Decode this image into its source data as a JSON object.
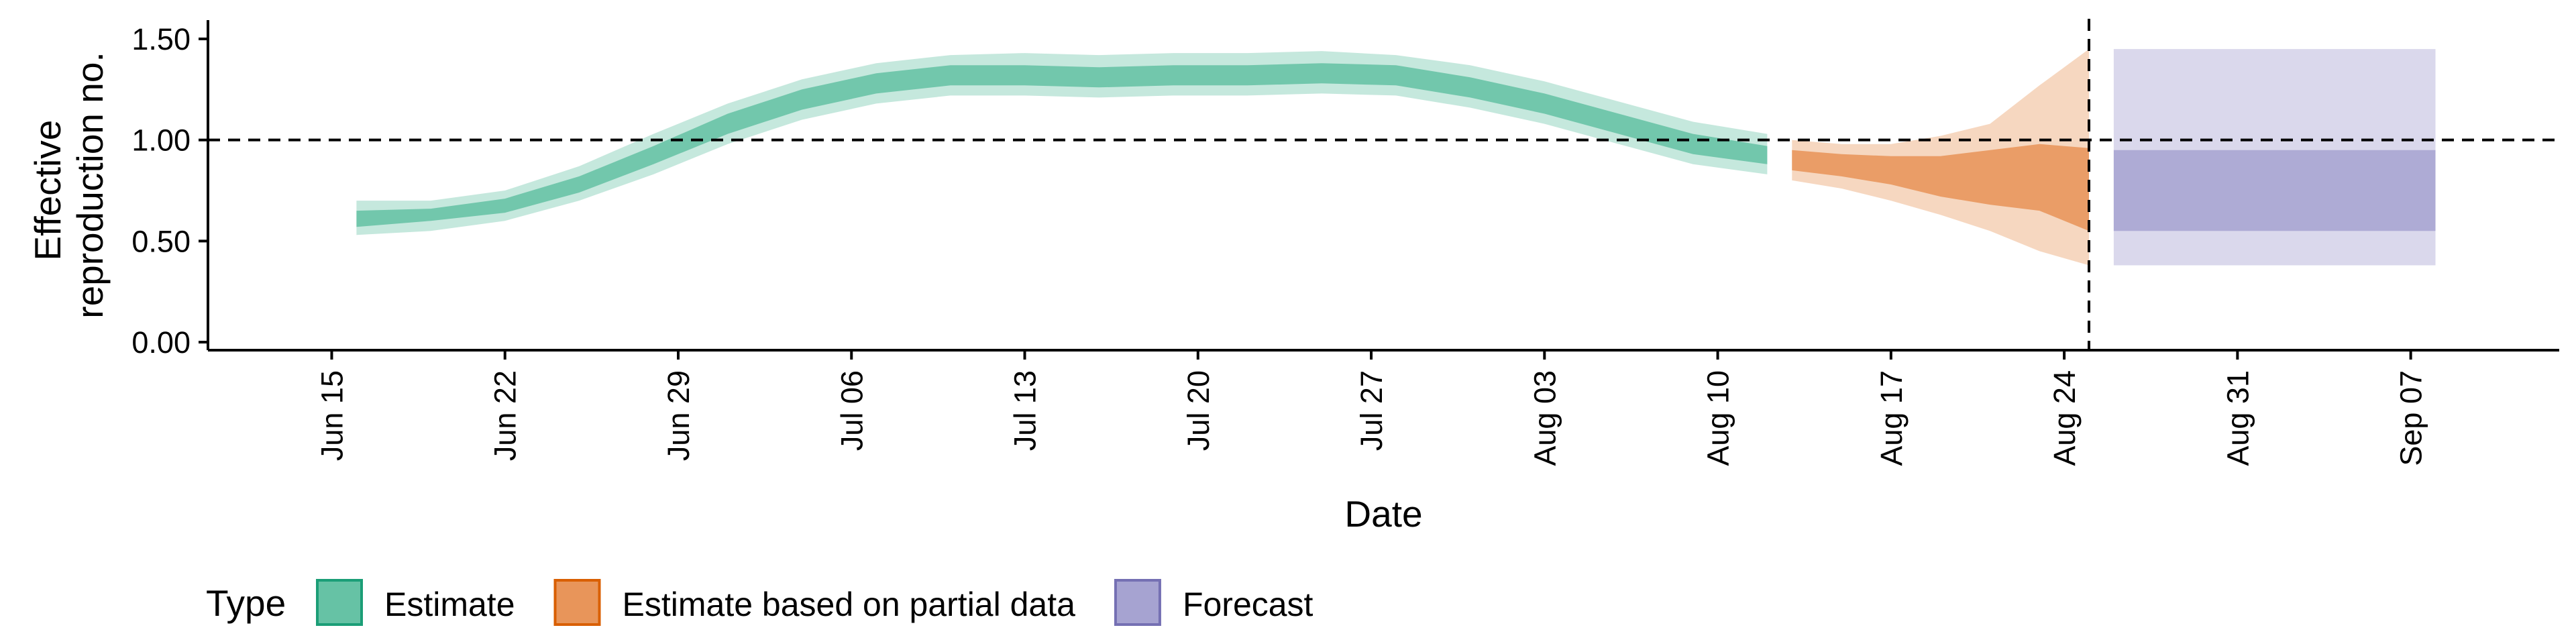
{
  "chart_data": {
    "type": "area",
    "xlabel": "Date",
    "ylabel_lines": [
      "Effective",
      "reproduction no."
    ],
    "ylim": [
      0,
      1.5
    ],
    "y_ticks": [
      0.0,
      0.5,
      1.0,
      1.5
    ],
    "y_tick_labels": [
      "0.00",
      "0.50",
      "1.00",
      "1.50"
    ],
    "x_range": [
      "2020-06-10",
      "2020-09-13"
    ],
    "x_ticks": [
      "2020-06-15",
      "2020-06-22",
      "2020-06-29",
      "2020-07-06",
      "2020-07-13",
      "2020-07-20",
      "2020-07-27",
      "2020-08-03",
      "2020-08-10",
      "2020-08-17",
      "2020-08-24",
      "2020-08-31",
      "2020-09-07"
    ],
    "x_tick_labels": [
      "Jun 15",
      "Jun 22",
      "Jun 29",
      "Jul 06",
      "Jul 13",
      "Jul 20",
      "Jul 27",
      "Aug 03",
      "Aug 10",
      "Aug 17",
      "Aug 24",
      "Aug 31",
      "Sep 07"
    ],
    "reference_lines": {
      "horizontal_y": 1.0,
      "vertical_date": "2020-08-25",
      "style": "dashed"
    },
    "grid": false,
    "legend": {
      "title": "Type",
      "position": "bottom-left",
      "entries": [
        {
          "label": "Estimate",
          "fill": "#66c2a5",
          "border": "#1b9e77"
        },
        {
          "label": "Estimate based on partial data",
          "fill": "#e8955a",
          "border": "#d95f02"
        },
        {
          "label": "Forecast",
          "fill": "#a6a3d1",
          "border": "#7570b3"
        }
      ]
    },
    "series": [
      {
        "name": "Estimate",
        "color": "#66c2a5",
        "points": [
          {
            "date": "2020-06-16",
            "outer": [
              0.53,
              0.7
            ],
            "inner": [
              0.57,
              0.65
            ]
          },
          {
            "date": "2020-06-19",
            "outer": [
              0.55,
              0.7
            ],
            "inner": [
              0.6,
              0.66
            ]
          },
          {
            "date": "2020-06-22",
            "outer": [
              0.6,
              0.75
            ],
            "inner": [
              0.64,
              0.71
            ]
          },
          {
            "date": "2020-06-25",
            "outer": [
              0.7,
              0.87
            ],
            "inner": [
              0.74,
              0.82
            ]
          },
          {
            "date": "2020-06-28",
            "outer": [
              0.83,
              1.03
            ],
            "inner": [
              0.88,
              0.97
            ]
          },
          {
            "date": "2020-07-01",
            "outer": [
              0.98,
              1.18
            ],
            "inner": [
              1.03,
              1.13
            ]
          },
          {
            "date": "2020-07-04",
            "outer": [
              1.1,
              1.3
            ],
            "inner": [
              1.15,
              1.25
            ]
          },
          {
            "date": "2020-07-07",
            "outer": [
              1.18,
              1.38
            ],
            "inner": [
              1.23,
              1.33
            ]
          },
          {
            "date": "2020-07-10",
            "outer": [
              1.22,
              1.42
            ],
            "inner": [
              1.27,
              1.37
            ]
          },
          {
            "date": "2020-07-13",
            "outer": [
              1.22,
              1.43
            ],
            "inner": [
              1.27,
              1.37
            ]
          },
          {
            "date": "2020-07-16",
            "outer": [
              1.21,
              1.42
            ],
            "inner": [
              1.26,
              1.36
            ]
          },
          {
            "date": "2020-07-19",
            "outer": [
              1.22,
              1.43
            ],
            "inner": [
              1.27,
              1.37
            ]
          },
          {
            "date": "2020-07-22",
            "outer": [
              1.22,
              1.43
            ],
            "inner": [
              1.27,
              1.37
            ]
          },
          {
            "date": "2020-07-25",
            "outer": [
              1.23,
              1.44
            ],
            "inner": [
              1.28,
              1.38
            ]
          },
          {
            "date": "2020-07-28",
            "outer": [
              1.22,
              1.42
            ],
            "inner": [
              1.27,
              1.37
            ]
          },
          {
            "date": "2020-07-31",
            "outer": [
              1.16,
              1.37
            ],
            "inner": [
              1.21,
              1.31
            ]
          },
          {
            "date": "2020-08-03",
            "outer": [
              1.08,
              1.29
            ],
            "inner": [
              1.13,
              1.23
            ]
          },
          {
            "date": "2020-08-06",
            "outer": [
              0.98,
              1.19
            ],
            "inner": [
              1.03,
              1.13
            ]
          },
          {
            "date": "2020-08-09",
            "outer": [
              0.88,
              1.09
            ],
            "inner": [
              0.93,
              1.03
            ]
          },
          {
            "date": "2020-08-12",
            "outer": [
              0.83,
              1.03
            ],
            "inner": [
              0.88,
              0.97
            ]
          }
        ]
      },
      {
        "name": "Estimate based on partial data",
        "color": "#e8955a",
        "points": [
          {
            "date": "2020-08-13",
            "outer": [
              0.8,
              1.0
            ],
            "inner": [
              0.85,
              0.95
            ]
          },
          {
            "date": "2020-08-15",
            "outer": [
              0.76,
              0.98
            ],
            "inner": [
              0.82,
              0.93
            ]
          },
          {
            "date": "2020-08-17",
            "outer": [
              0.7,
              0.98
            ],
            "inner": [
              0.78,
              0.92
            ]
          },
          {
            "date": "2020-08-19",
            "outer": [
              0.63,
              1.02
            ],
            "inner": [
              0.72,
              0.92
            ]
          },
          {
            "date": "2020-08-21",
            "outer": [
              0.55,
              1.08
            ],
            "inner": [
              0.68,
              0.95
            ]
          },
          {
            "date": "2020-08-23",
            "outer": [
              0.45,
              1.27
            ],
            "inner": [
              0.65,
              0.98
            ]
          },
          {
            "date": "2020-08-25",
            "outer": [
              0.38,
              1.45
            ],
            "inner": [
              0.55,
              0.96
            ]
          }
        ]
      },
      {
        "name": "Forecast",
        "color": "#a6a3d1",
        "points": [
          {
            "date": "2020-08-26",
            "outer": [
              0.38,
              1.45
            ],
            "inner": [
              0.55,
              0.95
            ]
          },
          {
            "date": "2020-09-08",
            "outer": [
              0.38,
              1.45
            ],
            "inner": [
              0.55,
              0.95
            ]
          }
        ]
      }
    ]
  }
}
